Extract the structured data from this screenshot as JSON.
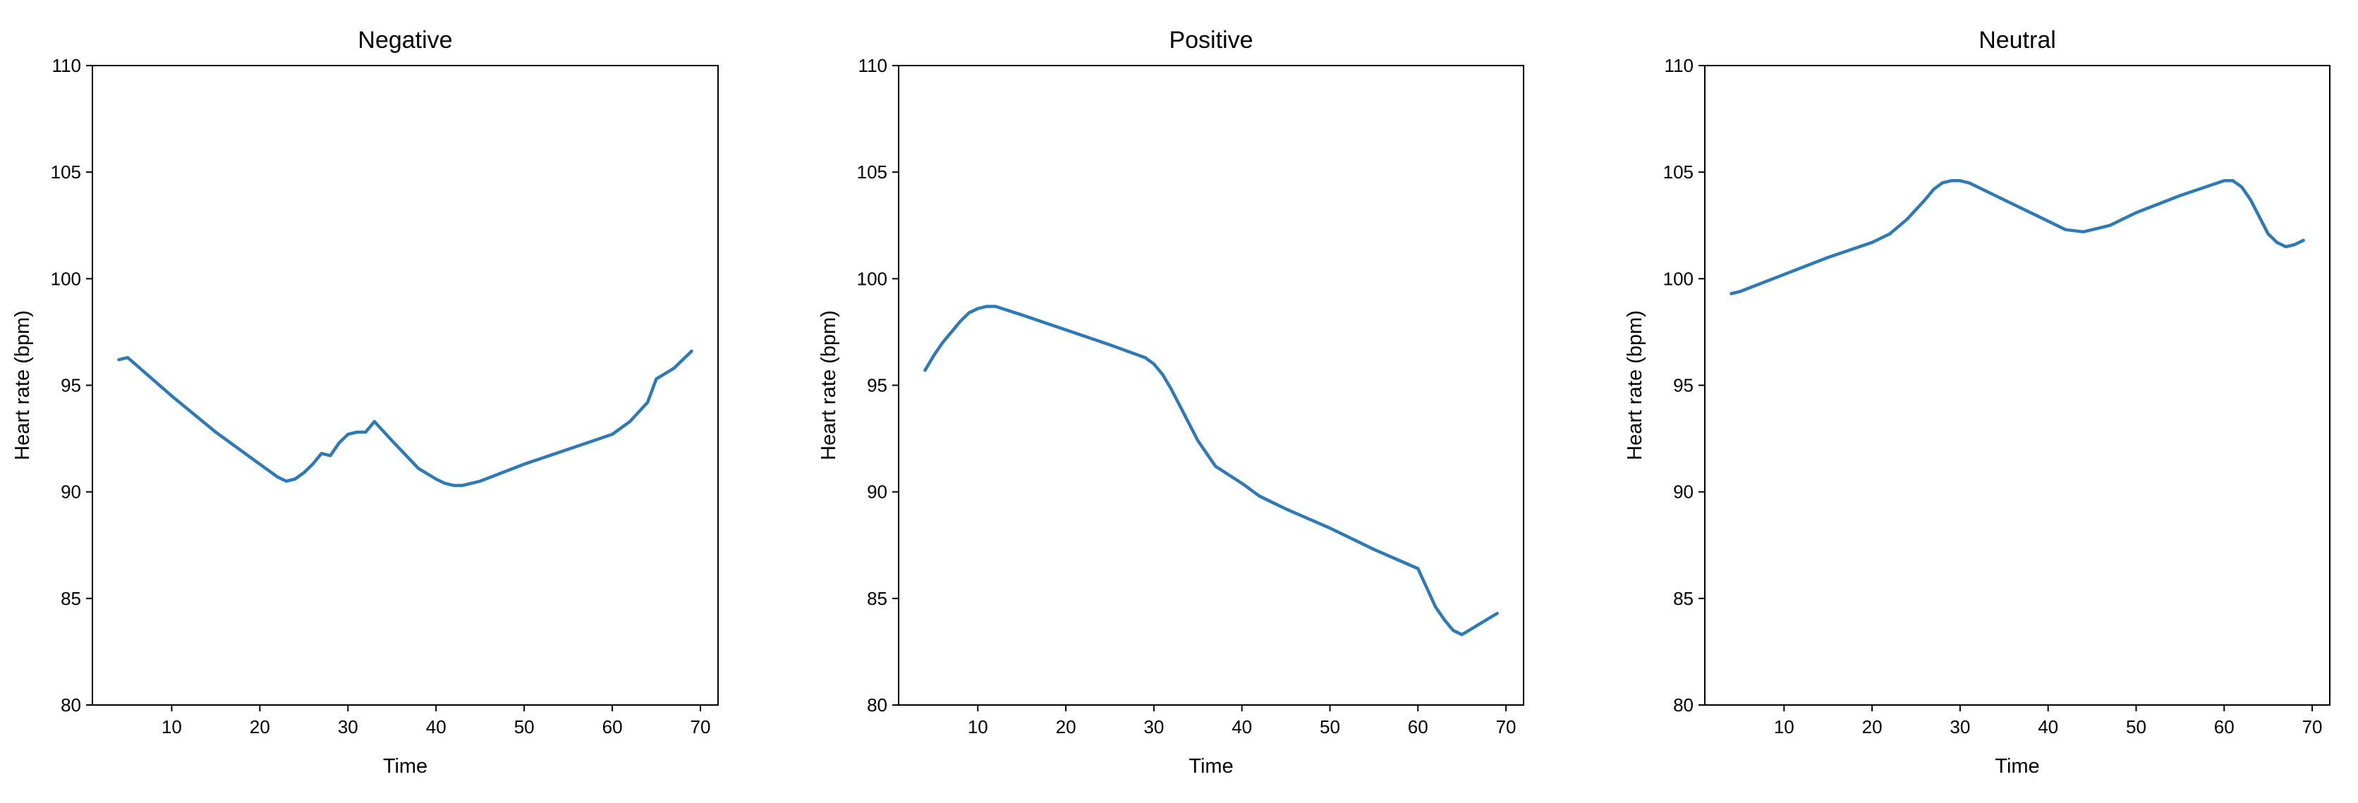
{
  "colors": {
    "line": "#2e7ab6",
    "axes": "#000000",
    "background": "#ffffff"
  },
  "chart_data": [
    {
      "type": "line",
      "title": "Negative",
      "xlabel": "Time",
      "ylabel": "Heart rate (bpm)",
      "xlim": [
        1,
        72
      ],
      "ylim": [
        80,
        110
      ],
      "xticks": [
        10,
        20,
        30,
        40,
        50,
        60,
        70
      ],
      "yticks": [
        80,
        85,
        90,
        95,
        100,
        105,
        110
      ],
      "grid": false,
      "series": [
        {
          "x": [
            4,
            5,
            10,
            15,
            20,
            22,
            23,
            24,
            25,
            26,
            27,
            28,
            29,
            30,
            31,
            32,
            33,
            35,
            38,
            40,
            41,
            42,
            43,
            44,
            45,
            50,
            55,
            60,
            62,
            64,
            65,
            67,
            69
          ],
          "y": [
            96.2,
            96.3,
            94.5,
            92.8,
            91.3,
            90.7,
            90.5,
            90.6,
            90.9,
            91.3,
            91.8,
            91.7,
            92.3,
            92.7,
            92.8,
            92.8,
            93.3,
            92.4,
            91.1,
            90.6,
            90.4,
            90.3,
            90.3,
            90.4,
            90.5,
            91.3,
            92.0,
            92.7,
            93.3,
            94.2,
            95.3,
            95.8,
            96.6
          ]
        }
      ]
    },
    {
      "type": "line",
      "title": "Positive",
      "xlabel": "Time",
      "ylabel": "Heart rate (bpm)",
      "xlim": [
        1,
        72
      ],
      "ylim": [
        80,
        110
      ],
      "xticks": [
        10,
        20,
        30,
        40,
        50,
        60,
        70
      ],
      "yticks": [
        80,
        85,
        90,
        95,
        100,
        105,
        110
      ],
      "grid": false,
      "series": [
        {
          "x": [
            4,
            5,
            6,
            7,
            8,
            9,
            10,
            11,
            12,
            15,
            20,
            25,
            29,
            30,
            31,
            32,
            33,
            35,
            37,
            40,
            42,
            43,
            45,
            50,
            55,
            60,
            61,
            62,
            63,
            64,
            65,
            67,
            69
          ],
          "y": [
            95.7,
            96.4,
            97.0,
            97.5,
            98.0,
            98.4,
            98.6,
            98.7,
            98.7,
            98.3,
            97.6,
            96.9,
            96.3,
            96.0,
            95.5,
            94.8,
            94.0,
            92.4,
            91.2,
            90.4,
            89.8,
            89.6,
            89.2,
            88.3,
            87.3,
            86.4,
            85.5,
            84.6,
            84.0,
            83.5,
            83.3,
            83.8,
            84.3
          ]
        }
      ]
    },
    {
      "type": "line",
      "title": "Neutral",
      "xlabel": "Time",
      "ylabel": "Heart rate (bpm)",
      "xlim": [
        1,
        72
      ],
      "ylim": [
        80,
        110
      ],
      "xticks": [
        10,
        20,
        30,
        40,
        50,
        60,
        70
      ],
      "yticks": [
        80,
        85,
        90,
        95,
        100,
        105,
        110
      ],
      "grid": false,
      "series": [
        {
          "x": [
            4,
            5,
            10,
            15,
            20,
            22,
            24,
            26,
            27,
            28,
            29,
            30,
            31,
            35,
            40,
            42,
            44,
            45,
            47,
            50,
            55,
            60,
            61,
            62,
            63,
            64,
            65,
            66,
            67,
            68,
            69
          ],
          "y": [
            99.3,
            99.4,
            100.2,
            101.0,
            101.7,
            102.1,
            102.8,
            103.7,
            104.2,
            104.5,
            104.6,
            104.6,
            104.5,
            103.7,
            102.7,
            102.3,
            102.2,
            102.3,
            102.5,
            103.1,
            103.9,
            104.6,
            104.6,
            104.3,
            103.7,
            102.9,
            102.1,
            101.7,
            101.5,
            101.6,
            101.8
          ]
        }
      ]
    }
  ]
}
